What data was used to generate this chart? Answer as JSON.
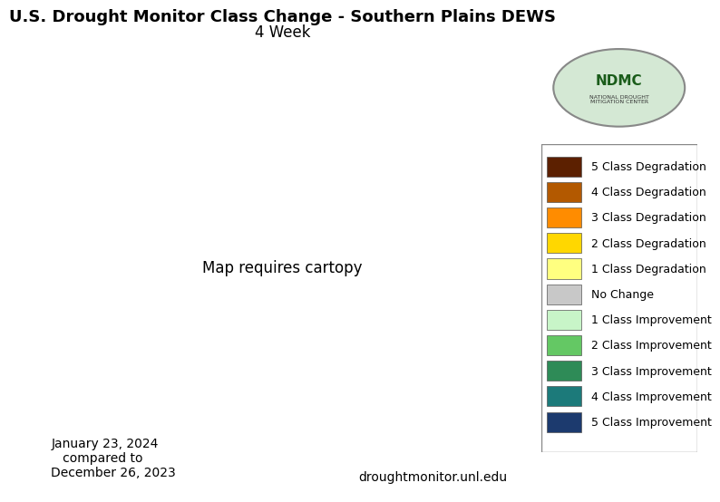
{
  "title_line1": "U.S. Drought Monitor Class Change - Southern Plains DEWS",
  "title_line2": "4 Week",
  "date_text": "January 23, 2024\n   compared to\nDecember 26, 2023",
  "website_text": "droughtmonitor.unl.edu",
  "legend_items": [
    {
      "label": "5 Class Degradation",
      "color": "#5C2000"
    },
    {
      "label": "4 Class Degradation",
      "color": "#B35900"
    },
    {
      "label": "3 Class Degradation",
      "color": "#FF8C00"
    },
    {
      "label": "2 Class Degradation",
      "color": "#FFD700"
    },
    {
      "label": "1 Class Degradation",
      "color": "#FFFF80"
    },
    {
      "label": "No Change",
      "color": "#C8C8C8"
    },
    {
      "label": "1 Class Improvement",
      "color": "#C8F5C8"
    },
    {
      "label": "2 Class Improvement",
      "color": "#64C864"
    },
    {
      "label": "3 Class Improvement",
      "color": "#2E8B57"
    },
    {
      "label": "4 Class Improvement",
      "color": "#1C7A7A"
    },
    {
      "label": "5 Class Improvement",
      "color": "#1C3A6E"
    }
  ],
  "background_color": "#FFFFFF",
  "border_color": "#AAAAAA",
  "map_background": "#FFFFFF",
  "title_fontsize": 13,
  "subtitle_fontsize": 12,
  "legend_fontsize": 9,
  "date_fontsize": 10,
  "website_fontsize": 10
}
